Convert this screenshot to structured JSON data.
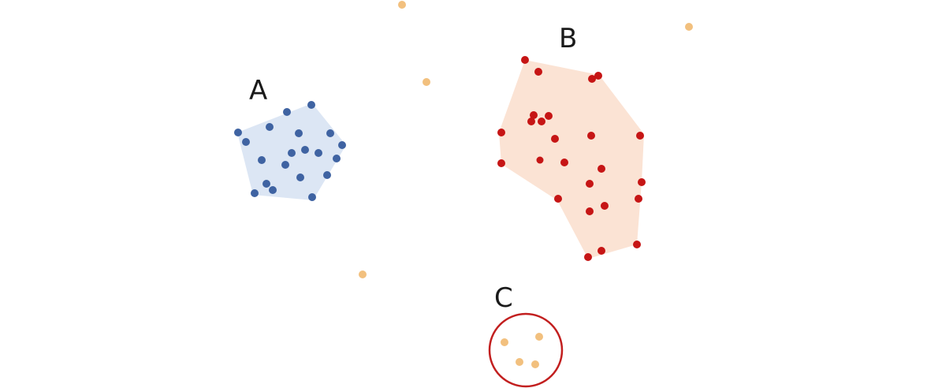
{
  "labels": {
    "a": "A",
    "b": "B",
    "c": "C"
  },
  "colors": {
    "cluster_a_fill": "#dce6f4",
    "cluster_a_point": "#3f63a2",
    "cluster_b_fill": "#fbe3d4",
    "cluster_b_point": "#c61515",
    "cluster_c_ring": "#c21f1f",
    "noise_point": "#f2c07e"
  }
}
